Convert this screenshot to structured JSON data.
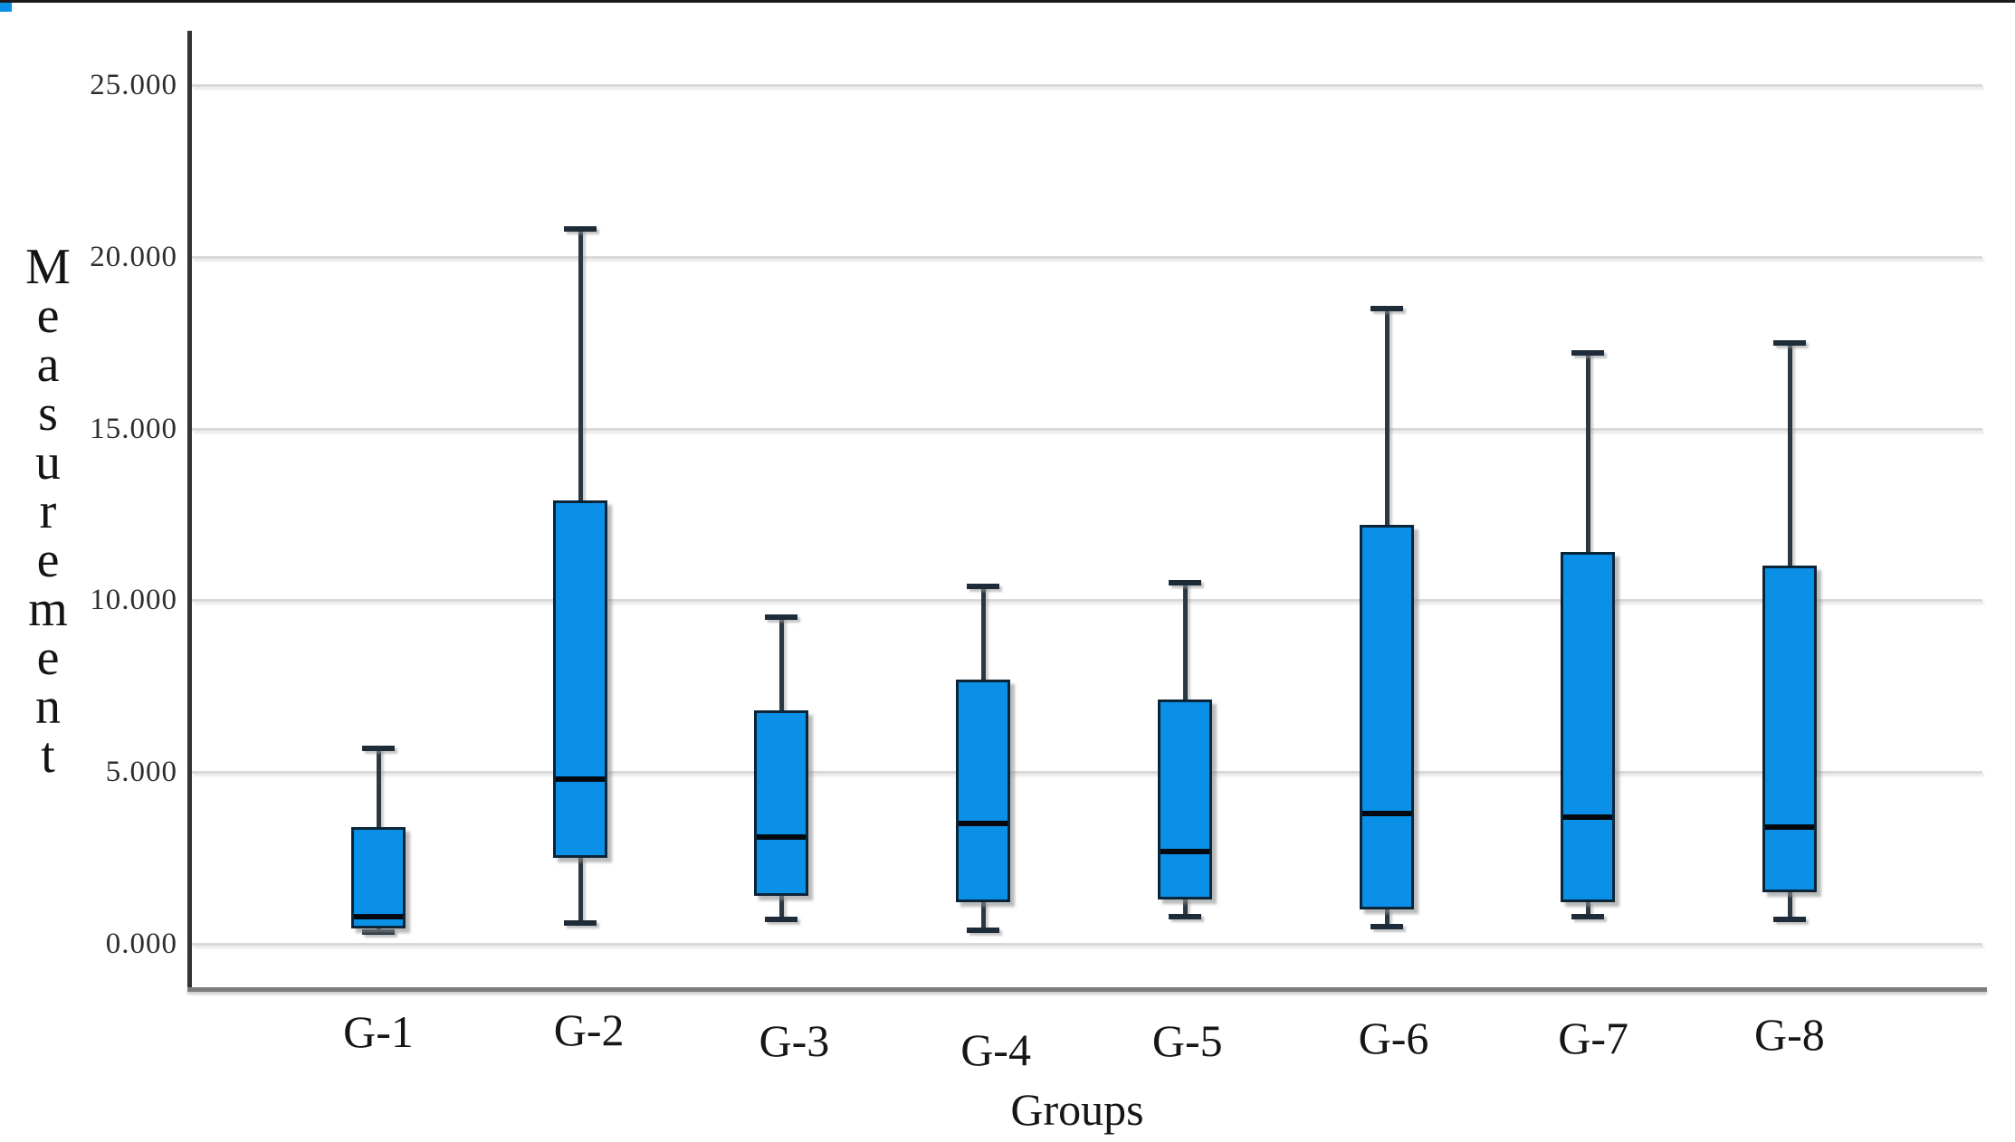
{
  "chart_data": {
    "type": "box",
    "title": "",
    "xlabel": "Groups",
    "ylabel": "Measurement",
    "categories": [
      "G-1",
      "G-2",
      "G-3",
      "G-4",
      "G-5",
      "G-6",
      "G-7",
      "G-8"
    ],
    "yticks": [
      {
        "value": 0,
        "label": "0.000"
      },
      {
        "value": 5,
        "label": "5.000"
      },
      {
        "value": 10,
        "label": "10.000"
      },
      {
        "value": 15,
        "label": "15.000"
      },
      {
        "value": 20,
        "label": "20.000"
      },
      {
        "value": 25,
        "label": "25.000"
      }
    ],
    "ylim": [
      -1.3,
      26.6
    ],
    "grid": "horizontal",
    "legend": "none",
    "series": [
      {
        "group": "G-1",
        "min": 0.35,
        "q1": 0.45,
        "median": 0.8,
        "q3": 3.4,
        "max": 5.7
      },
      {
        "group": "G-2",
        "min": 0.6,
        "q1": 2.5,
        "median": 4.8,
        "q3": 12.9,
        "max": 20.8
      },
      {
        "group": "G-3",
        "min": 0.7,
        "q1": 1.4,
        "median": 3.1,
        "q3": 6.8,
        "max": 9.5
      },
      {
        "group": "G-4",
        "min": 0.4,
        "q1": 1.2,
        "median": 3.5,
        "q3": 7.7,
        "max": 10.4
      },
      {
        "group": "G-5",
        "min": 0.8,
        "q1": 1.3,
        "median": 2.7,
        "q3": 7.1,
        "max": 10.5
      },
      {
        "group": "G-6",
        "min": 0.5,
        "q1": 1.0,
        "median": 3.8,
        "q3": 12.2,
        "max": 18.5
      },
      {
        "group": "G-7",
        "min": 0.8,
        "q1": 1.2,
        "median": 3.7,
        "q3": 11.4,
        "max": 17.2
      },
      {
        "group": "G-8",
        "min": 0.7,
        "q1": 1.5,
        "median": 3.4,
        "q3": 11.0,
        "max": 17.5
      }
    ],
    "colors": {
      "box_fill": "#0b90e8",
      "box_border": "#0a2438",
      "whisker": "#2a3844",
      "median": "#02090f",
      "gridline": "#d9d9d9",
      "axis_left": "#333333",
      "axis_bottom": "#7d7d7d"
    }
  }
}
